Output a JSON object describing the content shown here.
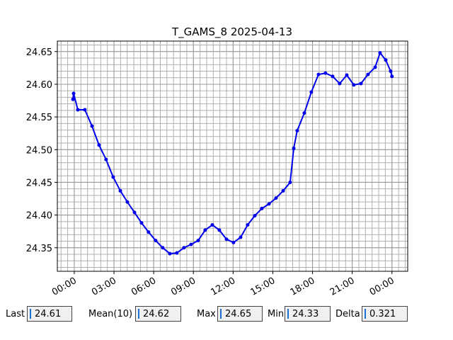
{
  "chart_data": {
    "type": "line",
    "title": "T_GAMS_8 2025-04-13",
    "x": [
      -0.1,
      -0.05,
      0.27,
      0.8,
      1.34,
      1.87,
      2.4,
      2.94,
      3.48,
      4.01,
      4.55,
      5.08,
      5.61,
      6.15,
      6.68,
      7.22,
      7.75,
      8.29,
      8.82,
      9.36,
      9.89,
      10.43,
      10.96,
      11.5,
      12.03,
      12.57,
      13.1,
      13.64,
      14.17,
      14.71,
      15.24,
      15.78,
      16.31,
      16.58,
      16.84,
      17.38,
      17.91,
      18.45,
      18.98,
      19.52,
      20.05,
      20.59,
      21.12,
      21.66,
      22.19,
      22.73,
      23.1,
      23.53,
      23.9,
      24.0
    ],
    "values": [
      24.577,
      24.586,
      24.561,
      24.561,
      24.536,
      24.507,
      24.485,
      24.458,
      24.437,
      24.42,
      24.404,
      24.388,
      24.374,
      24.361,
      24.35,
      24.341,
      24.342,
      24.35,
      24.355,
      24.361,
      24.377,
      24.385,
      24.377,
      24.363,
      24.358,
      24.366,
      24.385,
      24.399,
      24.41,
      24.417,
      24.426,
      24.437,
      24.45,
      24.502,
      24.529,
      24.556,
      24.588,
      24.615,
      24.617,
      24.612,
      24.601,
      24.614,
      24.599,
      24.601,
      24.615,
      24.626,
      24.648,
      24.637,
      24.62,
      24.612
    ],
    "color": "#0000ee",
    "xlim": [
      -1.28,
      25.19
    ],
    "xticks": [
      {
        "value": 0,
        "label": "00:00"
      },
      {
        "value": 3,
        "label": "03:00"
      },
      {
        "value": 6,
        "label": "06:00"
      },
      {
        "value": 9,
        "label": "09:00"
      },
      {
        "value": 12,
        "label": "12:00"
      },
      {
        "value": 15,
        "label": "15:00"
      },
      {
        "value": 18,
        "label": "18:00"
      },
      {
        "value": 21,
        "label": "21:00"
      },
      {
        "value": 24,
        "label": "00:00"
      }
    ],
    "ylim": [
      24.314,
      24.666
    ],
    "yticks": [
      24.35,
      {
        "value": 24.4,
        "label": "24.40"
      },
      24.45,
      {
        "value": 24.5,
        "label": "24.50"
      },
      24.55,
      {
        "value": 24.6,
        "label": "24.60"
      },
      24.65
    ],
    "grid": true,
    "minor_grid": {
      "x_step": 0.5,
      "y_step": 0.01
    }
  },
  "readouts": [
    {
      "label": "Last",
      "value": "24.61"
    },
    {
      "label": "Mean(10)",
      "value": "24.62"
    },
    {
      "label": "Max",
      "value": "24.65"
    },
    {
      "label": "Min",
      "value": "24.33"
    },
    {
      "label": "Delta",
      "value": "0.321"
    }
  ]
}
